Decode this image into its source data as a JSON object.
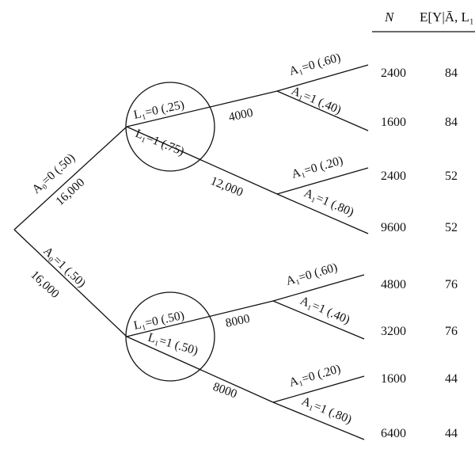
{
  "header": {
    "col_n": "N",
    "col_e": "E[Y|Ā, L₁"
  },
  "root": {
    "upper_branch_label": "A₀=0 (.50)",
    "upper_branch_count": "16,000",
    "lower_branch_label": "A₀=1 (.50)",
    "lower_branch_count": "16,000"
  },
  "upper_node": {
    "l0_label": "L₁=0 (.25)",
    "l1_label": "L₁=1 (.75)",
    "l0_count": "4000",
    "l1_count": "12,000",
    "l0_a0_label": "A₁=0 (.60)",
    "l0_a1_label": "A₁=1 (.40)",
    "l1_a0_label": "A₁=0 (.20)",
    "l1_a1_label": "A₁=1 (.80)"
  },
  "lower_node": {
    "l0_label": "L₁=0 (.50)",
    "l1_label": "L₁=1 (.50)",
    "l0_count": "8000",
    "l1_count": "8000",
    "l0_a0_label": "A₁=0 (.60)",
    "l0_a1_label": "A₁=1 (.40)",
    "l1_a0_label": "A₁=0 (.20)",
    "l1_a1_label": "A₁=1 (.80)"
  },
  "rows": [
    {
      "n": "2400",
      "e": "84"
    },
    {
      "n": "1600",
      "e": "84"
    },
    {
      "n": "2400",
      "e": "52"
    },
    {
      "n": "9600",
      "e": "52"
    },
    {
      "n": "4800",
      "e": "76"
    },
    {
      "n": "3200",
      "e": "76"
    },
    {
      "n": "1600",
      "e": "44"
    },
    {
      "n": "6400",
      "e": "44"
    }
  ]
}
